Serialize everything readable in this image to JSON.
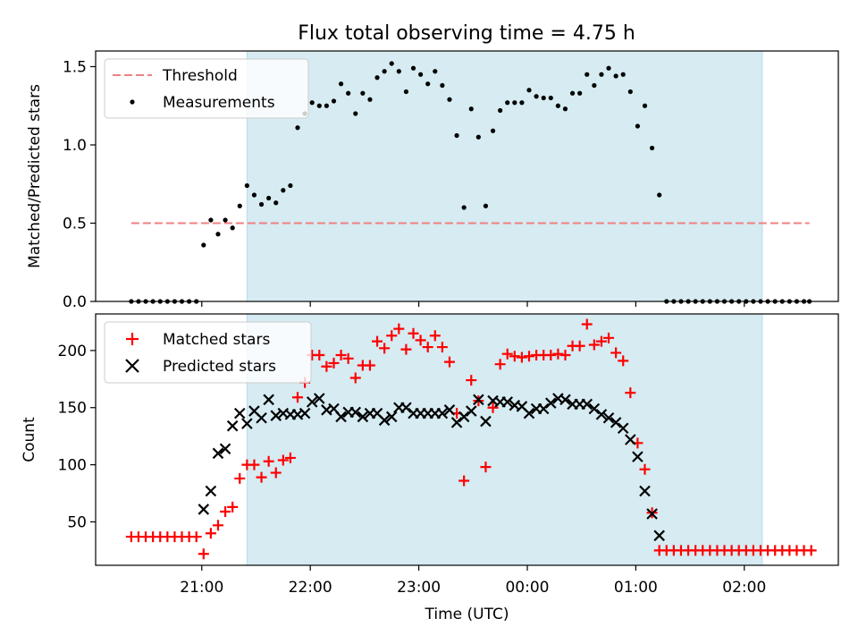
{
  "figure": {
    "title": "Flux total observing time = 4.75 h",
    "xlabel": "Time (UTC)",
    "x_ticks": [
      "21:00",
      "22:00",
      "23:00",
      "00:00",
      "01:00",
      "02:00"
    ],
    "x_tick_values_min": [
      0,
      60,
      120,
      180,
      240,
      300
    ],
    "xlim_min": [
      -58.7,
      352.0
    ],
    "span_min": [
      25.0,
      310.0
    ],
    "span_color": "#add8e6",
    "background": "#ffffff",
    "x_axis_note": "x values are minutes after 21:00 UTC"
  },
  "chart_data": [
    {
      "type": "scatter",
      "ylabel": "Matched/Predicted stars",
      "ylim": [
        0,
        1.6
      ],
      "yticks": [
        0.0,
        0.5,
        1.0,
        1.5
      ],
      "ytick_labels": [
        "0.0",
        "0.5",
        "1.0",
        "1.5"
      ],
      "legend_position": "upper left",
      "threshold": {
        "name": "Threshold",
        "value": 0.5,
        "x_range": [
          -39,
          336
        ],
        "color": "#f08080"
      },
      "series": [
        {
          "name": "Measurements",
          "color": "#000000",
          "x": [
            -39,
            -35,
            -31,
            -27,
            -23,
            -19,
            -15,
            -11,
            -7,
            -3,
            1,
            5,
            9,
            13,
            17,
            21,
            25,
            29,
            33,
            37,
            41,
            45,
            49,
            53,
            57,
            61,
            65,
            69,
            73,
            77,
            81,
            85,
            89,
            93,
            97,
            101,
            105,
            109,
            113,
            117,
            121,
            125,
            129,
            133,
            137,
            141,
            145,
            149,
            153,
            157,
            161,
            165,
            169,
            173,
            177,
            181,
            185,
            189,
            193,
            197,
            201,
            205,
            209,
            213,
            217,
            221,
            225,
            229,
            233,
            237,
            241,
            245,
            249,
            253,
            257,
            261,
            265,
            269,
            273,
            277,
            281,
            285,
            289,
            293,
            297,
            301,
            305,
            309,
            313,
            317,
            321,
            325,
            329,
            333,
            336
          ],
          "y": [
            0,
            0,
            0,
            0,
            0,
            0,
            0,
            0,
            0,
            0,
            0.36,
            0.52,
            0.43,
            0.52,
            0.47,
            0.61,
            0.74,
            0.68,
            0.62,
            0.66,
            0.63,
            0.71,
            0.74,
            1.11,
            1.2,
            1.27,
            1.25,
            1.25,
            1.28,
            1.39,
            1.33,
            1.2,
            1.33,
            1.29,
            1.43,
            1.47,
            1.52,
            1.47,
            1.34,
            1.49,
            1.45,
            1.39,
            1.47,
            1.38,
            1.29,
            1.06,
            0.6,
            1.23,
            1.05,
            0.61,
            1.09,
            1.22,
            1.27,
            1.27,
            1.27,
            1.35,
            1.31,
            1.3,
            1.3,
            1.25,
            1.23,
            1.33,
            1.33,
            1.45,
            1.38,
            1.45,
            1.49,
            1.44,
            1.45,
            1.34,
            1.12,
            1.25,
            0.98,
            0.68,
            0,
            0,
            0,
            0,
            0,
            0,
            0,
            0,
            0,
            0,
            0,
            0,
            0,
            0,
            0,
            0,
            0,
            0,
            0,
            0,
            0
          ]
        }
      ]
    },
    {
      "type": "scatter",
      "ylabel": "Count",
      "ylim": [
        12,
        232
      ],
      "yticks": [
        50,
        100,
        150,
        200
      ],
      "ytick_labels": [
        "50",
        "100",
        "150",
        "200"
      ],
      "legend_position": "upper left",
      "series": [
        {
          "name": "Matched stars",
          "marker": "+",
          "color": "#ff0000",
          "x": [
            -39,
            -35,
            -31,
            -27,
            -23,
            -19,
            -15,
            -11,
            -7,
            -3,
            1,
            5,
            9,
            13,
            17,
            21,
            25,
            29,
            33,
            37,
            41,
            45,
            49,
            53,
            57,
            61,
            65,
            69,
            73,
            77,
            81,
            85,
            89,
            93,
            97,
            101,
            105,
            109,
            113,
            117,
            121,
            125,
            129,
            133,
            137,
            141,
            145,
            149,
            153,
            157,
            161,
            165,
            169,
            173,
            177,
            181,
            185,
            189,
            193,
            197,
            201,
            205,
            209,
            213,
            217,
            221,
            225,
            229,
            233,
            237,
            241,
            245,
            249,
            253,
            257,
            261,
            265,
            269,
            273,
            277,
            281,
            285,
            289,
            293,
            297,
            301,
            305,
            309,
            313,
            317,
            321,
            325,
            329,
            333,
            337
          ],
          "y": [
            37,
            37,
            37,
            37,
            37,
            37,
            37,
            37,
            37,
            37,
            22,
            40,
            47,
            59,
            63,
            88,
            100,
            100,
            89,
            103,
            93,
            104,
            106,
            159,
            172,
            196,
            196,
            186,
            189,
            196,
            193,
            176,
            187,
            187,
            208,
            202,
            213,
            219,
            201,
            215,
            209,
            203,
            213,
            203,
            190,
            145,
            86,
            174,
            156,
            98,
            150,
            188,
            197,
            195,
            194,
            195,
            196,
            196,
            196,
            197,
            196,
            204,
            204,
            223,
            205,
            208,
            211,
            198,
            191,
            163,
            119,
            96,
            58,
            25,
            25,
            25,
            25,
            25,
            25,
            25,
            25,
            25,
            25,
            25,
            25,
            25,
            25,
            25,
            25,
            25,
            25,
            25,
            25,
            25,
            25
          ]
        },
        {
          "name": "Predicted stars",
          "marker": "x",
          "color": "#000000",
          "x": [
            1,
            5,
            9,
            13,
            17,
            21,
            25,
            29,
            33,
            37,
            41,
            45,
            49,
            53,
            57,
            61,
            65,
            69,
            73,
            77,
            81,
            85,
            89,
            93,
            97,
            101,
            105,
            109,
            113,
            117,
            121,
            125,
            129,
            133,
            137,
            141,
            145,
            149,
            153,
            157,
            161,
            165,
            169,
            173,
            177,
            181,
            185,
            189,
            193,
            197,
            201,
            205,
            209,
            213,
            217,
            221,
            225,
            229,
            233,
            237,
            241,
            245,
            249,
            253
          ],
          "y": [
            61,
            77,
            110,
            114,
            134,
            145,
            136,
            147,
            141,
            157,
            143,
            145,
            144,
            144,
            145,
            155,
            158,
            148,
            149,
            142,
            146,
            146,
            142,
            145,
            145,
            139,
            142,
            150,
            150,
            145,
            145,
            145,
            145,
            145,
            148,
            137,
            142,
            147,
            157,
            138,
            156,
            155,
            155,
            152,
            151,
            145,
            149,
            149,
            154,
            158,
            157,
            153,
            153,
            153,
            149,
            144,
            141,
            137,
            132,
            122,
            107,
            77,
            57,
            38
          ]
        }
      ]
    }
  ]
}
